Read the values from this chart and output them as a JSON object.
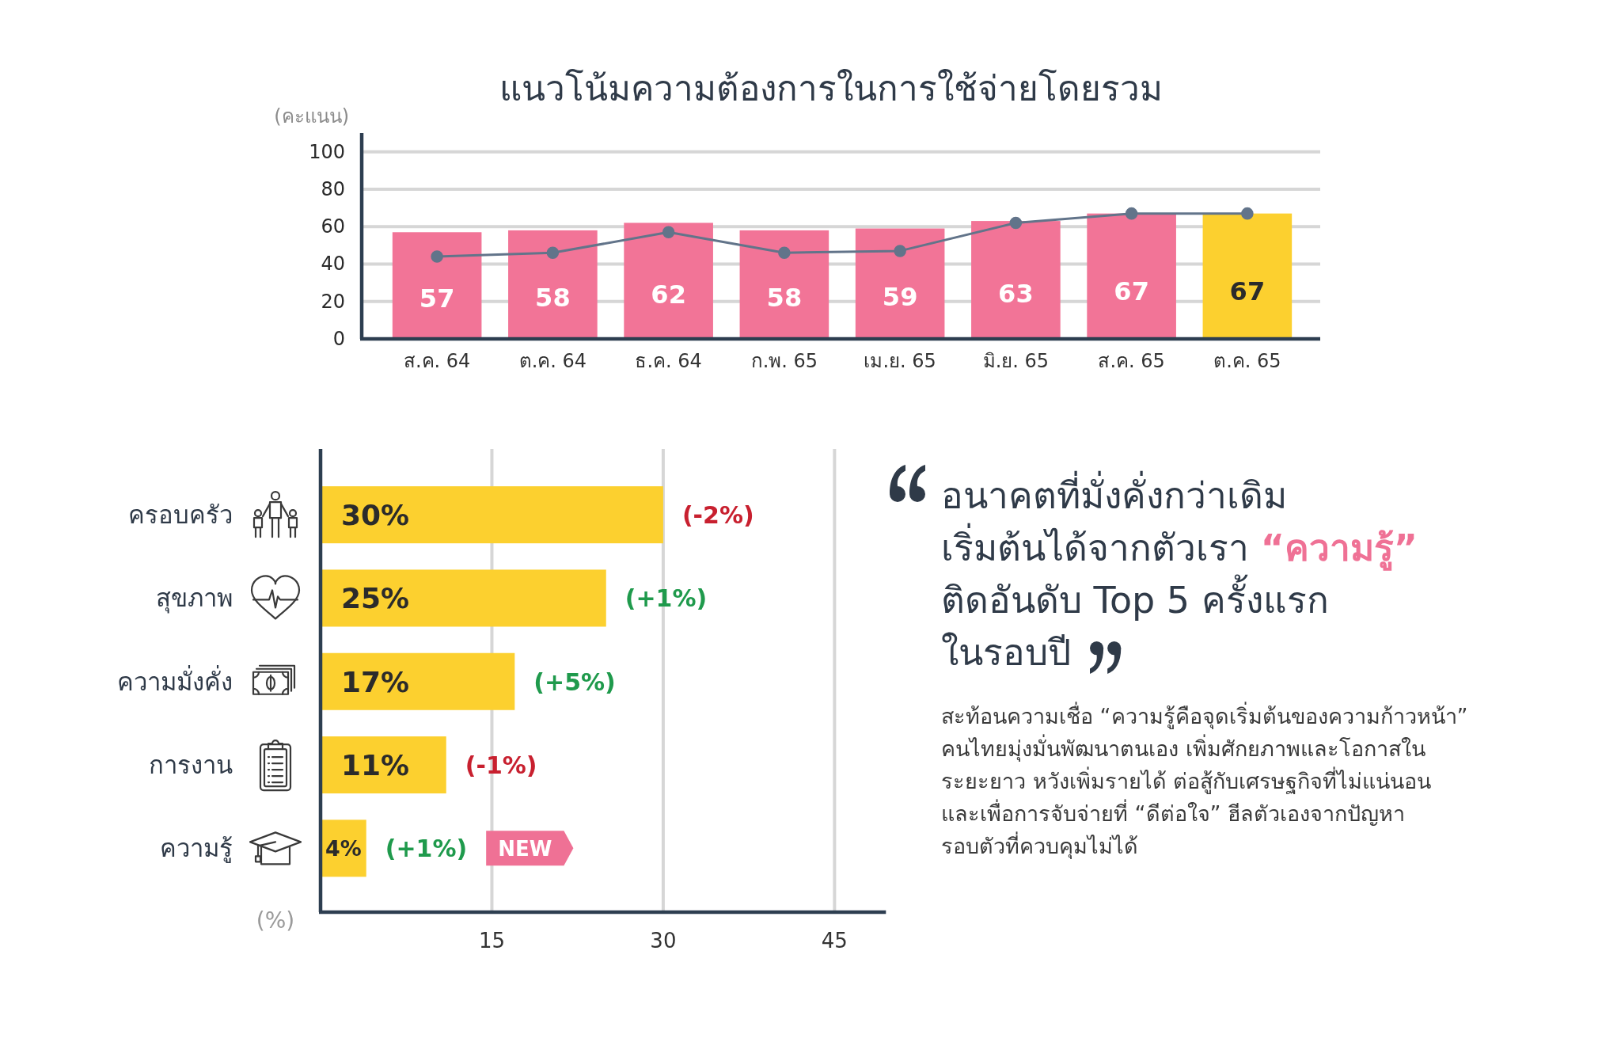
{
  "chart_data": [
    {
      "type": "bar",
      "title": "แนวโน้มความต้องการในการใช้จ่ายโดยรวม",
      "ylabel": "(คะแนน)",
      "categories": [
        "ส.ค. 64",
        "ต.ค. 64",
        "ธ.ค. 64",
        "ก.พ. 65",
        "เม.ย. 65",
        "มิ.ย. 65",
        "ส.ค. 65",
        "ต.ค. 65"
      ],
      "series": [
        {
          "type": "bar",
          "colors": [
            "#f27497",
            "#f27497",
            "#f27497",
            "#f27497",
            "#f27497",
            "#f27497",
            "#f27497",
            "#fcd02f"
          ],
          "values": [
            57,
            58,
            62,
            58,
            59,
            63,
            67,
            67
          ],
          "value_labels": [
            "57",
            "58",
            "62",
            "58",
            "59",
            "63",
            "67",
            "67"
          ]
        },
        {
          "type": "line",
          "color": "#62748a",
          "values": [
            44,
            46,
            57,
            46,
            47,
            62,
            67,
            67
          ]
        }
      ],
      "ylim": [
        0,
        110
      ],
      "yticks": [
        0,
        20,
        40,
        60,
        80,
        100
      ],
      "grid": "y",
      "marker": "circle"
    },
    {
      "type": "bar",
      "orientation": "horizontal",
      "xlabel": "(%)",
      "categories": [
        "ครอบครัว",
        "สุขภาพ",
        "ความมั่งคั่ง",
        "การงาน",
        "ความรู้"
      ],
      "values": [
        30,
        25,
        17,
        11,
        4
      ],
      "color": "#fcd02f",
      "value_labels": [
        "30%",
        "25%",
        "17%",
        "11%",
        "4%"
      ],
      "xlim": [
        0,
        49.5
      ],
      "xticks": [
        15,
        30,
        45
      ],
      "grid": "x",
      "annotations": [
        {
          "text": "(-2%)",
          "x": 30,
          "y": "ครอบครัว"
        },
        {
          "text": "(+1%)",
          "x": 25,
          "y": "สุขภาพ"
        },
        {
          "text": "(+5%)",
          "x": 17,
          "y": "ความมั่งคั่ง"
        },
        {
          "text": "(-1%)",
          "x": 11,
          "y": "การงาน"
        },
        {
          "text": "(+1%)",
          "x": 4,
          "y": "ความรู้"
        },
        "NEW"
      ]
    },
    {
      "type": "other",
      "title": "อนาคตที่มั่งคั่งกว่าเดิม\nเริ่มต้นได้จากตัวเรา “ความรู้”\nติดอันดับ Top 5 ครั้งแรก\nในรอบปี",
      "annotations": [
        "สะท้อนความเชื่อ “ความรู้คือจุดเริ่มต้นของความก้าวหน้า”\nคนไทยมุ่งมั่นพัฒนาตนเอง เพิ่มศักยภาพและโอกาสใน\nระยะยาว หวังเพิ่มรายได้ ต่อสู้กับเศรษฐกิจที่ไม่แน่นอน\nและเพื่อการจับจ่ายที่ “ดีต่อใจ” ฮีลตัวเองจากปัญหา\nรอบตัวที่ควบคุมไม่ได้"
      ]
    }
  ]
}
